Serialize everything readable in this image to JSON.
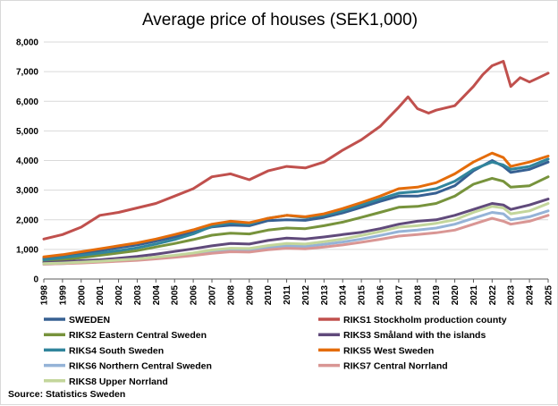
{
  "chart_data": {
    "type": "line",
    "title": "Average price of houses (SEK1,000)",
    "source": "Source: Statistics Sweden",
    "xlabel": "",
    "ylabel": "",
    "xlim": [
      1998,
      2025
    ],
    "ylim": [
      0,
      8000
    ],
    "grid": true,
    "legend_position": "bottom",
    "x_ticks": [
      "1998",
      "1999",
      "2000",
      "2001",
      "2002",
      "2003",
      "2004",
      "2005",
      "2006",
      "2007",
      "2008",
      "2009",
      "2010",
      "2011",
      "2012",
      "2013",
      "2014",
      "2015",
      "2016",
      "2017",
      "2018",
      "2019",
      "2020",
      "2021",
      "2022",
      "2023",
      "2024",
      "2025"
    ],
    "y_ticks": [
      "0",
      "1,000",
      "2,000",
      "3,000",
      "4,000",
      "5,000",
      "6,000",
      "7,000",
      "8,000"
    ],
    "y_tick_values": [
      0,
      1000,
      2000,
      3000,
      4000,
      5000,
      6000,
      7000,
      8000
    ],
    "series": [
      {
        "name": "SWEDEN",
        "color": "#376092",
        "points": [
          [
            1998,
            700
          ],
          [
            1999,
            760
          ],
          [
            2000,
            850
          ],
          [
            2001,
            960
          ],
          [
            2002,
            1060
          ],
          [
            2003,
            1150
          ],
          [
            2004,
            1280
          ],
          [
            2005,
            1420
          ],
          [
            2006,
            1570
          ],
          [
            2007,
            1760
          ],
          [
            2008,
            1820
          ],
          [
            2009,
            1800
          ],
          [
            2010,
            1970
          ],
          [
            2011,
            2000
          ],
          [
            2012,
            1980
          ],
          [
            2013,
            2080
          ],
          [
            2014,
            2230
          ],
          [
            2015,
            2420
          ],
          [
            2016,
            2620
          ],
          [
            2017,
            2800
          ],
          [
            2018,
            2800
          ],
          [
            2019,
            2900
          ],
          [
            2020,
            3150
          ],
          [
            2021,
            3650
          ],
          [
            2022,
            4000
          ],
          [
            2022.6,
            3800
          ],
          [
            2023,
            3600
          ],
          [
            2024,
            3700
          ],
          [
            2025,
            3950
          ]
        ]
      },
      {
        "name": "RIKS1 Stockholm production county",
        "color": "#c0504d",
        "points": [
          [
            1998,
            1350
          ],
          [
            1999,
            1500
          ],
          [
            2000,
            1750
          ],
          [
            2001,
            2150
          ],
          [
            2002,
            2250
          ],
          [
            2003,
            2400
          ],
          [
            2004,
            2550
          ],
          [
            2005,
            2800
          ],
          [
            2006,
            3050
          ],
          [
            2007,
            3450
          ],
          [
            2008,
            3550
          ],
          [
            2009,
            3350
          ],
          [
            2010,
            3650
          ],
          [
            2011,
            3800
          ],
          [
            2012,
            3750
          ],
          [
            2013,
            3950
          ],
          [
            2014,
            4350
          ],
          [
            2015,
            4700
          ],
          [
            2016,
            5150
          ],
          [
            2017,
            5800
          ],
          [
            2017.5,
            6150
          ],
          [
            2018,
            5750
          ],
          [
            2018.6,
            5600
          ],
          [
            2019,
            5700
          ],
          [
            2020,
            5850
          ],
          [
            2021,
            6500
          ],
          [
            2021.5,
            6900
          ],
          [
            2022,
            7200
          ],
          [
            2022.6,
            7350
          ],
          [
            2023,
            6500
          ],
          [
            2023.5,
            6800
          ],
          [
            2024,
            6650
          ],
          [
            2024.5,
            6800
          ],
          [
            2025,
            6950
          ]
        ]
      },
      {
        "name": "RIKS2 Eastern Central Sweden",
        "color": "#77933c",
        "points": [
          [
            1998,
            600
          ],
          [
            1999,
            650
          ],
          [
            2000,
            720
          ],
          [
            2001,
            800
          ],
          [
            2002,
            880
          ],
          [
            2003,
            960
          ],
          [
            2004,
            1080
          ],
          [
            2005,
            1200
          ],
          [
            2006,
            1330
          ],
          [
            2007,
            1480
          ],
          [
            2008,
            1550
          ],
          [
            2009,
            1520
          ],
          [
            2010,
            1650
          ],
          [
            2011,
            1720
          ],
          [
            2012,
            1700
          ],
          [
            2013,
            1800
          ],
          [
            2014,
            1920
          ],
          [
            2015,
            2080
          ],
          [
            2016,
            2250
          ],
          [
            2017,
            2420
          ],
          [
            2018,
            2450
          ],
          [
            2019,
            2550
          ],
          [
            2020,
            2800
          ],
          [
            2021,
            3200
          ],
          [
            2022,
            3400
          ],
          [
            2022.6,
            3300
          ],
          [
            2023,
            3100
          ],
          [
            2024,
            3150
          ],
          [
            2025,
            3450
          ]
        ]
      },
      {
        "name": "RIKS3 Småland with the islands",
        "color": "#604a7b",
        "points": [
          [
            1998,
            550
          ],
          [
            1999,
            580
          ],
          [
            2000,
            620
          ],
          [
            2001,
            650
          ],
          [
            2002,
            700
          ],
          [
            2003,
            760
          ],
          [
            2004,
            840
          ],
          [
            2005,
            930
          ],
          [
            2006,
            1020
          ],
          [
            2007,
            1120
          ],
          [
            2008,
            1200
          ],
          [
            2009,
            1180
          ],
          [
            2010,
            1300
          ],
          [
            2011,
            1380
          ],
          [
            2012,
            1350
          ],
          [
            2013,
            1420
          ],
          [
            2014,
            1500
          ],
          [
            2015,
            1580
          ],
          [
            2016,
            1700
          ],
          [
            2017,
            1850
          ],
          [
            2018,
            1950
          ],
          [
            2019,
            2000
          ],
          [
            2020,
            2150
          ],
          [
            2021,
            2350
          ],
          [
            2022,
            2550
          ],
          [
            2022.6,
            2500
          ],
          [
            2023,
            2350
          ],
          [
            2024,
            2500
          ],
          [
            2025,
            2700
          ]
        ]
      },
      {
        "name": "RIKS4 South Sweden",
        "color": "#31859c",
        "points": [
          [
            1998,
            650
          ],
          [
            1999,
            720
          ],
          [
            2000,
            800
          ],
          [
            2001,
            880
          ],
          [
            2002,
            960
          ],
          [
            2003,
            1050
          ],
          [
            2004,
            1180
          ],
          [
            2005,
            1330
          ],
          [
            2006,
            1520
          ],
          [
            2007,
            1780
          ],
          [
            2008,
            1900
          ],
          [
            2009,
            1850
          ],
          [
            2010,
            2050
          ],
          [
            2011,
            2150
          ],
          [
            2012,
            2080
          ],
          [
            2013,
            2150
          ],
          [
            2014,
            2300
          ],
          [
            2015,
            2500
          ],
          [
            2016,
            2700
          ],
          [
            2017,
            2900
          ],
          [
            2018,
            2950
          ],
          [
            2019,
            3050
          ],
          [
            2020,
            3300
          ],
          [
            2021,
            3700
          ],
          [
            2022,
            3950
          ],
          [
            2022.6,
            3850
          ],
          [
            2023,
            3700
          ],
          [
            2024,
            3800
          ],
          [
            2025,
            4050
          ]
        ]
      },
      {
        "name": "RIKS5 West Sweden",
        "color": "#e46c0a",
        "points": [
          [
            1998,
            750
          ],
          [
            1999,
            820
          ],
          [
            2000,
            920
          ],
          [
            2001,
            1020
          ],
          [
            2002,
            1120
          ],
          [
            2003,
            1220
          ],
          [
            2004,
            1350
          ],
          [
            2005,
            1500
          ],
          [
            2006,
            1660
          ],
          [
            2007,
            1850
          ],
          [
            2008,
            1950
          ],
          [
            2009,
            1900
          ],
          [
            2010,
            2050
          ],
          [
            2011,
            2150
          ],
          [
            2012,
            2100
          ],
          [
            2013,
            2200
          ],
          [
            2014,
            2380
          ],
          [
            2015,
            2580
          ],
          [
            2016,
            2800
          ],
          [
            2017,
            3050
          ],
          [
            2018,
            3100
          ],
          [
            2019,
            3250
          ],
          [
            2020,
            3550
          ],
          [
            2021,
            3950
          ],
          [
            2022,
            4250
          ],
          [
            2022.6,
            4100
          ],
          [
            2023,
            3800
          ],
          [
            2024,
            3950
          ],
          [
            2025,
            4150
          ]
        ]
      },
      {
        "name": "RIKS6 Northern Central Sweden",
        "color": "#95b3d7",
        "points": [
          [
            1998,
            500
          ],
          [
            1999,
            520
          ],
          [
            2000,
            550
          ],
          [
            2001,
            580
          ],
          [
            2002,
            610
          ],
          [
            2003,
            650
          ],
          [
            2004,
            700
          ],
          [
            2005,
            760
          ],
          [
            2006,
            830
          ],
          [
            2007,
            920
          ],
          [
            2008,
            980
          ],
          [
            2009,
            970
          ],
          [
            2010,
            1060
          ],
          [
            2011,
            1120
          ],
          [
            2012,
            1100
          ],
          [
            2013,
            1170
          ],
          [
            2014,
            1250
          ],
          [
            2015,
            1350
          ],
          [
            2016,
            1470
          ],
          [
            2017,
            1600
          ],
          [
            2018,
            1650
          ],
          [
            2019,
            1720
          ],
          [
            2020,
            1850
          ],
          [
            2021,
            2050
          ],
          [
            2022,
            2250
          ],
          [
            2022.6,
            2200
          ],
          [
            2023,
            2000
          ],
          [
            2024,
            2100
          ],
          [
            2025,
            2300
          ]
        ]
      },
      {
        "name": "RIKS7 Central Norrland",
        "color": "#d99694",
        "points": [
          [
            1998,
            500
          ],
          [
            1999,
            520
          ],
          [
            2000,
            540
          ],
          [
            2001,
            570
          ],
          [
            2002,
            600
          ],
          [
            2003,
            630
          ],
          [
            2004,
            680
          ],
          [
            2005,
            730
          ],
          [
            2006,
            790
          ],
          [
            2007,
            870
          ],
          [
            2008,
            920
          ],
          [
            2009,
            910
          ],
          [
            2010,
            990
          ],
          [
            2011,
            1040
          ],
          [
            2012,
            1020
          ],
          [
            2013,
            1080
          ],
          [
            2014,
            1150
          ],
          [
            2015,
            1240
          ],
          [
            2016,
            1340
          ],
          [
            2017,
            1450
          ],
          [
            2018,
            1500
          ],
          [
            2019,
            1560
          ],
          [
            2020,
            1650
          ],
          [
            2021,
            1850
          ],
          [
            2022,
            2050
          ],
          [
            2022.6,
            1950
          ],
          [
            2023,
            1850
          ],
          [
            2024,
            1950
          ],
          [
            2025,
            2150
          ]
        ]
      },
      {
        "name": "RIKS8 Upper Norrland",
        "color": "#c3d69b",
        "points": [
          [
            1998,
            520
          ],
          [
            1999,
            540
          ],
          [
            2000,
            570
          ],
          [
            2001,
            600
          ],
          [
            2002,
            640
          ],
          [
            2003,
            680
          ],
          [
            2004,
            740
          ],
          [
            2005,
            800
          ],
          [
            2006,
            880
          ],
          [
            2007,
            980
          ],
          [
            2008,
            1040
          ],
          [
            2009,
            1030
          ],
          [
            2010,
            1130
          ],
          [
            2011,
            1200
          ],
          [
            2012,
            1180
          ],
          [
            2013,
            1260
          ],
          [
            2014,
            1350
          ],
          [
            2015,
            1470
          ],
          [
            2016,
            1600
          ],
          [
            2017,
            1750
          ],
          [
            2018,
            1800
          ],
          [
            2019,
            1880
          ],
          [
            2020,
            2000
          ],
          [
            2021,
            2250
          ],
          [
            2022,
            2450
          ],
          [
            2022.6,
            2400
          ],
          [
            2023,
            2200
          ],
          [
            2024,
            2300
          ],
          [
            2025,
            2550
          ]
        ]
      }
    ]
  }
}
